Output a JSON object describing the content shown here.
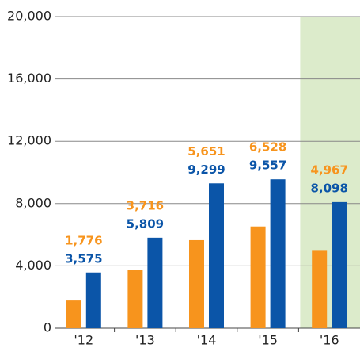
{
  "chart_data": {
    "type": "bar",
    "categories": [
      "'12",
      "'13",
      "'14",
      "'15",
      "'16"
    ],
    "series": [
      {
        "color": "#f7941d",
        "values": [
          1776,
          3716,
          5651,
          6528,
          4967
        ],
        "value_labels": [
          "1,776",
          "3,716",
          "5,651",
          "6,528",
          "4,967"
        ]
      },
      {
        "color": "#0b55a8",
        "values": [
          3575,
          5809,
          9299,
          9557,
          8098
        ],
        "value_labels": [
          "3,575",
          "5,809",
          "9,299",
          "9,557",
          "8,098"
        ]
      }
    ],
    "ylim": [
      0,
      20000
    ],
    "yticks": [
      {
        "value": 0,
        "label": "0"
      },
      {
        "value": 4000,
        "label": "4,000"
      },
      {
        "value": 8000,
        "label": "8,000"
      },
      {
        "value": 12000,
        "label": "12,000"
      },
      {
        "value": 16000,
        "label": "16,000"
      },
      {
        "value": 20000,
        "label": "20,000"
      }
    ],
    "grid": true,
    "highlight": {
      "category": 4,
      "color": "#dcebcb"
    }
  }
}
